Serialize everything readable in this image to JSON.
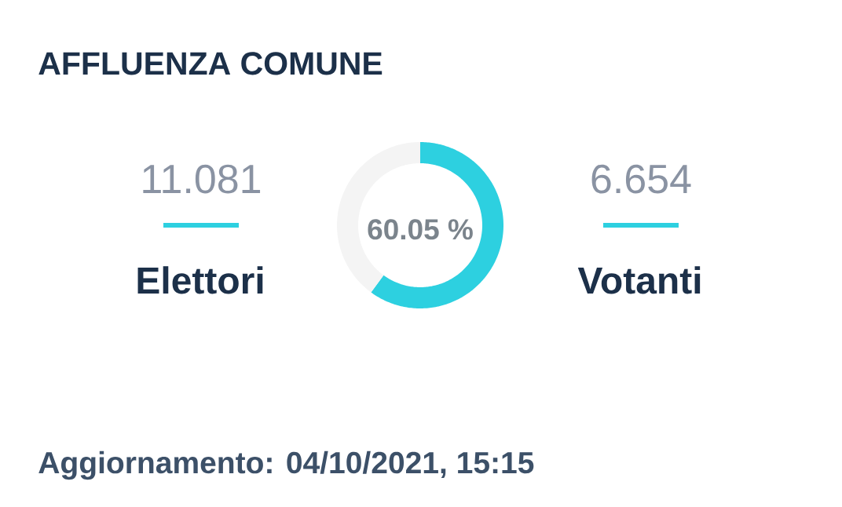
{
  "chart_data": {
    "type": "donut",
    "title": "AFFLUENZA COMUNE",
    "categories": [
      null,
      null
    ],
    "values": [
      60.05,
      39.95
    ],
    "colors": [
      "#2dd0e0",
      "#f4f4f4"
    ],
    "annotations": [
      "11.081",
      "Elettori",
      "60.05 %",
      "6.654",
      "Votanti",
      "Aggiornamento: 04/10/2021, 15:15"
    ]
  }
}
